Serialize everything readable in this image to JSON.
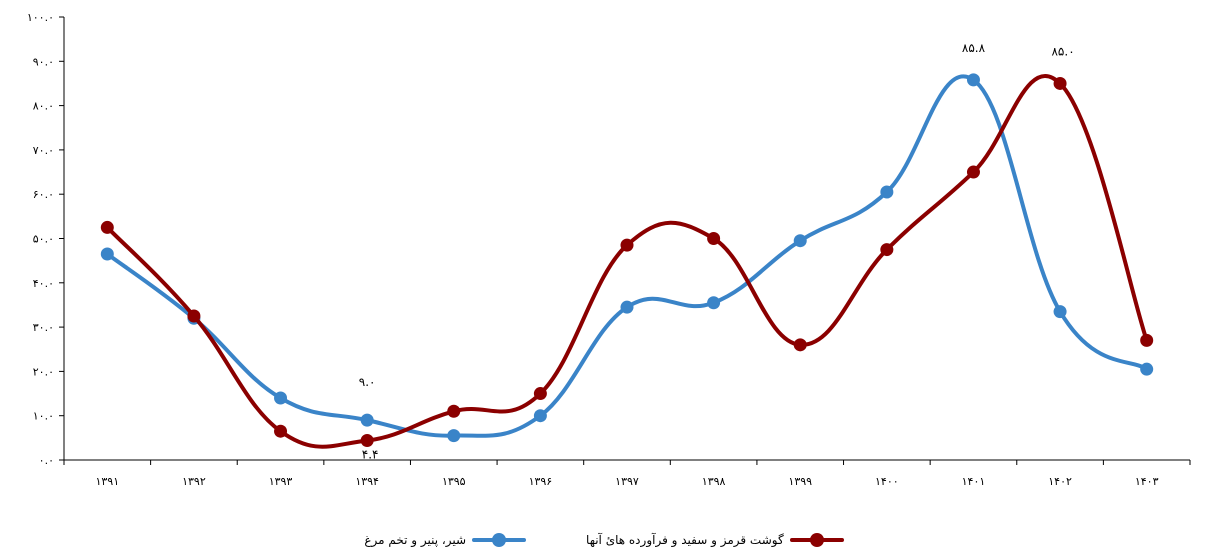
{
  "chart_data": {
    "type": "line",
    "categories": [
      "۱۳۹۱",
      "۱۳۹۲",
      "۱۳۹۳",
      "۱۳۹۴",
      "۱۳۹۵",
      "۱۳۹۶",
      "۱۳۹۷",
      "۱۳۹۸",
      "۱۳۹۹",
      "۱۴۰۰",
      "۱۴۰۱",
      "۱۴۰۲",
      "۱۴۰۳"
    ],
    "y_ticks": [
      "۰.۰",
      "۱۰.۰",
      "۲۰.۰",
      "۳۰.۰",
      "۴۰.۰",
      "۵۰.۰",
      "۶۰.۰",
      "۷۰.۰",
      "۸۰.۰",
      "۹۰.۰",
      "۱۰۰.۰"
    ],
    "ylim": [
      0,
      100
    ],
    "series": [
      {
        "name": "گوشت قرمز و سفید و فرآورده هائ آنها",
        "color": "#8B0000",
        "values": [
          52.5,
          32.5,
          6.5,
          4.4,
          11.0,
          15.0,
          48.5,
          50.0,
          26.0,
          47.5,
          65.0,
          85.0,
          27.0
        ]
      },
      {
        "name": "شیر، پنیر و تخم مرغ",
        "color": "#3A84C8",
        "values": [
          46.5,
          32.0,
          14.0,
          9.0,
          5.5,
          10.0,
          34.5,
          35.5,
          49.5,
          60.5,
          85.8,
          33.5,
          20.5
        ]
      }
    ],
    "annotations": [
      {
        "text": "۹.۰",
        "category": "۱۳۹۴"
      },
      {
        "text": "۴.۴",
        "category": "۱۳۹۴"
      },
      {
        "text": "۸۵.۸",
        "category": "۱۴۰۱"
      },
      {
        "text": "۸۵.۰",
        "category": "۱۴۰۲"
      }
    ],
    "grid": false,
    "legend_position": "bottom"
  }
}
